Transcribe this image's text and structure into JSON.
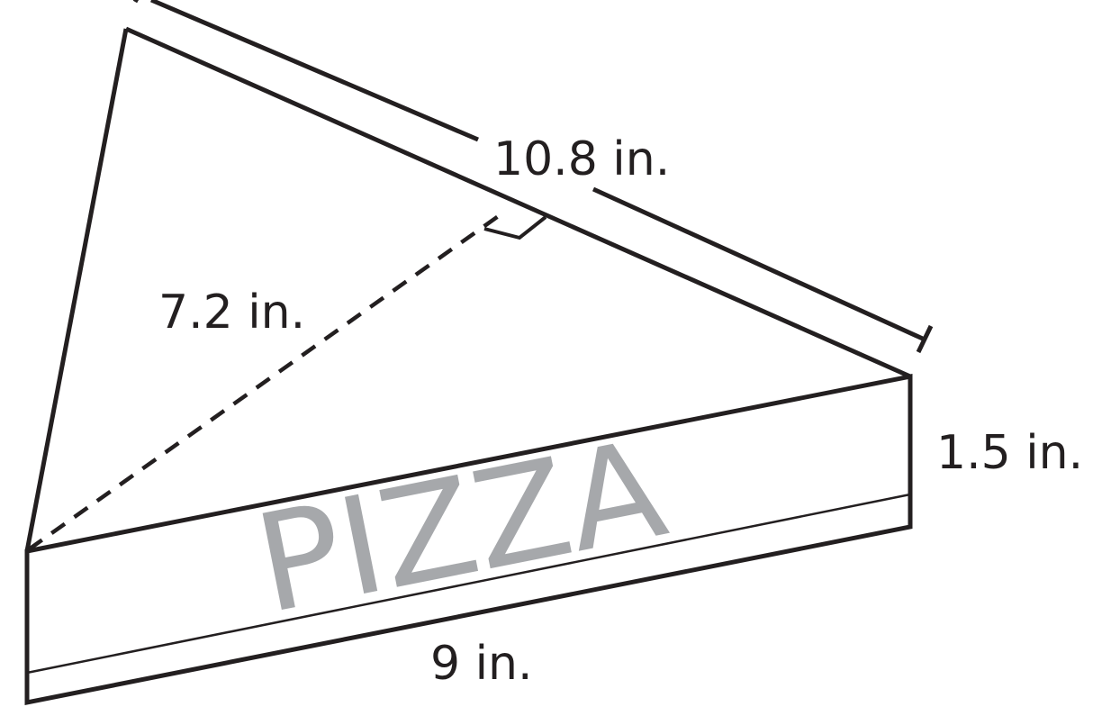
{
  "diagram": {
    "hypotenuse_label": "10.8 in.",
    "height_label": "7.2 in.",
    "thickness_label": "1.5 in.",
    "base_label": "9 in.",
    "box_brand_text": "PIZZA"
  },
  "colors": {
    "stroke": "#231f20",
    "brand_text": "#a6a8ab",
    "background": "#ffffff"
  }
}
